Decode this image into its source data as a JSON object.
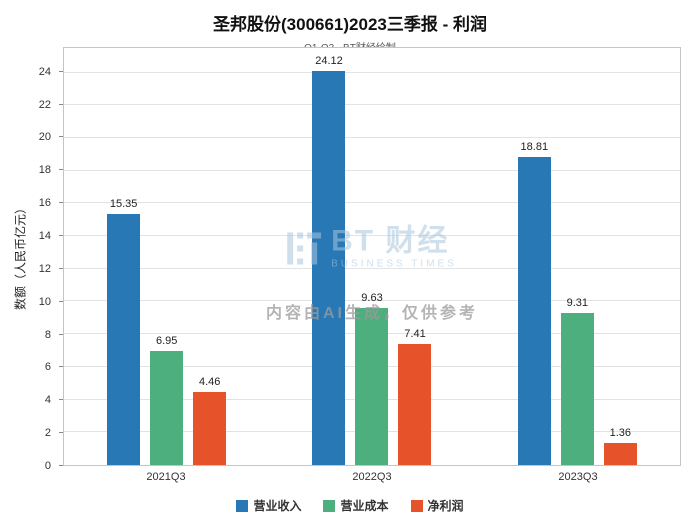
{
  "watermark": {
    "logo_text": "BT 财经",
    "logo_sub": "BUSINESS TIMES",
    "disclaimer": "内容由AI生成，仅供参考"
  },
  "chart_data": {
    "type": "bar",
    "title": "圣邦股份(300661)2023三季报 - 利润",
    "subtitle": "Q1-Q3 - BT财经绘制",
    "xlabel": "",
    "ylabel": "数额（人民币亿元）",
    "categories": [
      "2021Q3",
      "2022Q3",
      "2023Q3"
    ],
    "series": [
      {
        "name": "营业收入",
        "color": "#2878b5",
        "values": [
          15.35,
          24.12,
          18.81
        ]
      },
      {
        "name": "营业成本",
        "color": "#4daf7e",
        "values": [
          6.95,
          9.63,
          9.31
        ]
      },
      {
        "name": "净利润",
        "color": "#e6532a",
        "values": [
          4.46,
          7.41,
          1.36
        ]
      }
    ],
    "ylim": [
      0,
      25.5
    ],
    "yticks": [
      0,
      2,
      4,
      6,
      8,
      10,
      12,
      14,
      16,
      18,
      20,
      22,
      24
    ],
    "grid": true,
    "legend_position": "bottom"
  }
}
